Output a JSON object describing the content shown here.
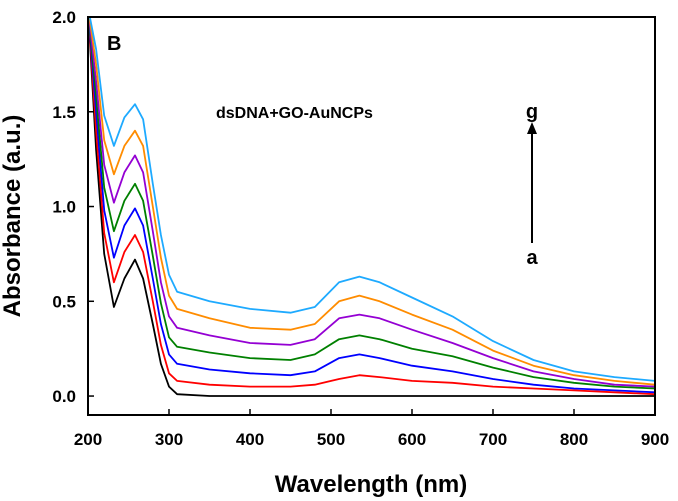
{
  "chart_data": {
    "type": "line",
    "title": "",
    "panel_label": "B",
    "annotation": "dsDNA+GO-AuNCPs",
    "arrow_start_label": "a",
    "arrow_end_label": "g",
    "xlabel": "Wavelength (nm)",
    "ylabel": "Absorbance (a.u.)",
    "xlim": [
      200,
      900
    ],
    "ylim": [
      -0.1,
      2.0
    ],
    "xticks": [
      200,
      300,
      400,
      500,
      600,
      700,
      800,
      900
    ],
    "yticks": [
      0.0,
      0.5,
      1.0,
      1.5,
      2.0
    ],
    "ytick_labels": [
      "0.0",
      "0.5",
      "1.0",
      "1.5",
      "2.0"
    ],
    "grid": false,
    "legend": "none",
    "series": [
      {
        "color": "#000000",
        "x": [
          200,
          210,
          220,
          232,
          245,
          258,
          268,
          280,
          290,
          300,
          310,
          350,
          400,
          450,
          500,
          520,
          535,
          550,
          570,
          600,
          650,
          700,
          750,
          800,
          850,
          900
        ],
        "y": [
          2.05,
          1.3,
          0.75,
          0.47,
          0.62,
          0.72,
          0.62,
          0.38,
          0.17,
          0.05,
          0.01,
          0.0,
          0.0,
          0.0,
          0.0,
          0.0,
          0.0,
          0.0,
          0.0,
          0.0,
          0.0,
          0.0,
          0.0,
          0.0,
          0.0,
          0.0
        ]
      },
      {
        "color": "#ff0000",
        "x": [
          200,
          210,
          220,
          232,
          245,
          258,
          268,
          280,
          290,
          300,
          310,
          350,
          400,
          450,
          480,
          510,
          535,
          560,
          600,
          650,
          700,
          750,
          800,
          850,
          900
        ],
        "y": [
          2.05,
          1.4,
          0.86,
          0.6,
          0.76,
          0.85,
          0.76,
          0.5,
          0.27,
          0.12,
          0.08,
          0.06,
          0.05,
          0.05,
          0.06,
          0.09,
          0.11,
          0.1,
          0.08,
          0.07,
          0.05,
          0.04,
          0.03,
          0.02,
          0.01
        ]
      },
      {
        "color": "#0000ff",
        "x": [
          200,
          210,
          220,
          232,
          245,
          258,
          268,
          280,
          290,
          300,
          310,
          350,
          400,
          450,
          480,
          510,
          535,
          560,
          600,
          650,
          700,
          750,
          800,
          850,
          900
        ],
        "y": [
          2.05,
          1.5,
          0.98,
          0.73,
          0.9,
          0.99,
          0.9,
          0.62,
          0.38,
          0.22,
          0.17,
          0.14,
          0.12,
          0.11,
          0.13,
          0.2,
          0.22,
          0.2,
          0.16,
          0.13,
          0.09,
          0.06,
          0.04,
          0.03,
          0.02
        ]
      },
      {
        "color": "#008000",
        "x": [
          200,
          210,
          220,
          232,
          245,
          258,
          268,
          280,
          290,
          300,
          310,
          350,
          400,
          450,
          480,
          510,
          535,
          560,
          600,
          650,
          700,
          750,
          800,
          850,
          900
        ],
        "y": [
          2.05,
          1.58,
          1.1,
          0.87,
          1.03,
          1.12,
          1.03,
          0.74,
          0.49,
          0.31,
          0.26,
          0.23,
          0.2,
          0.19,
          0.22,
          0.3,
          0.32,
          0.3,
          0.25,
          0.21,
          0.15,
          0.1,
          0.07,
          0.05,
          0.04
        ]
      },
      {
        "color": "#9400d3",
        "x": [
          200,
          210,
          220,
          232,
          245,
          258,
          268,
          280,
          290,
          300,
          310,
          350,
          400,
          450,
          480,
          510,
          535,
          560,
          600,
          650,
          700,
          750,
          800,
          850,
          900
        ],
        "y": [
          2.05,
          1.66,
          1.22,
          1.02,
          1.18,
          1.27,
          1.18,
          0.87,
          0.6,
          0.42,
          0.36,
          0.32,
          0.28,
          0.27,
          0.3,
          0.41,
          0.43,
          0.41,
          0.35,
          0.28,
          0.2,
          0.13,
          0.09,
          0.06,
          0.05
        ]
      },
      {
        "color": "#ff8c00",
        "x": [
          200,
          210,
          220,
          232,
          245,
          258,
          268,
          280,
          290,
          300,
          310,
          350,
          400,
          450,
          480,
          510,
          535,
          560,
          600,
          650,
          700,
          750,
          800,
          850,
          900
        ],
        "y": [
          2.05,
          1.75,
          1.35,
          1.17,
          1.32,
          1.4,
          1.32,
          1.0,
          0.73,
          0.53,
          0.46,
          0.41,
          0.36,
          0.35,
          0.38,
          0.5,
          0.53,
          0.5,
          0.43,
          0.35,
          0.24,
          0.16,
          0.11,
          0.08,
          0.06
        ]
      },
      {
        "color": "#1eaaff",
        "x": [
          200,
          210,
          220,
          232,
          245,
          258,
          268,
          280,
          290,
          300,
          310,
          350,
          400,
          450,
          480,
          510,
          535,
          560,
          600,
          650,
          700,
          750,
          800,
          850,
          900
        ],
        "y": [
          2.05,
          1.83,
          1.48,
          1.32,
          1.47,
          1.54,
          1.46,
          1.12,
          0.85,
          0.64,
          0.55,
          0.5,
          0.46,
          0.44,
          0.47,
          0.6,
          0.63,
          0.6,
          0.52,
          0.42,
          0.29,
          0.19,
          0.13,
          0.1,
          0.08
        ]
      }
    ]
  }
}
